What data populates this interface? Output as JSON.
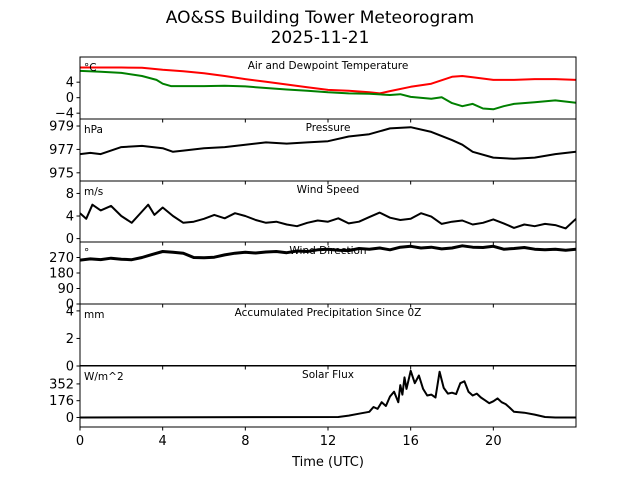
{
  "title_line1": "AO&SS Building Tower Meteorogram",
  "title_line2": "2025-11-21",
  "chart_data": [
    {
      "type": "line",
      "title": "Air and Dewpoint Temperature",
      "unit": "°C",
      "yticks": [
        4,
        0,
        -4
      ],
      "ylim": [
        -5.5,
        10.5
      ],
      "series": [
        {
          "name": "Air Temperature",
          "color": "#ff0000",
          "x": [
            0,
            1,
            2,
            3,
            4,
            5,
            6,
            7,
            8,
            9,
            10,
            11,
            12,
            13,
            14,
            14.5,
            15,
            16,
            17,
            18,
            18.5,
            19,
            20,
            21,
            22,
            23,
            24
          ],
          "y": [
            7.8,
            7.8,
            7.8,
            7.7,
            7.2,
            6.8,
            6.3,
            5.6,
            4.8,
            4.1,
            3.4,
            2.7,
            2.0,
            1.8,
            1.4,
            1.1,
            1.7,
            2.8,
            3.6,
            5.4,
            5.6,
            5.3,
            4.6,
            4.6,
            4.8,
            4.8,
            4.6
          ]
        },
        {
          "name": "Dewpoint",
          "color": "#008000",
          "x": [
            0,
            1,
            2,
            3,
            3.7,
            4,
            4.4,
            5,
            6,
            7,
            8,
            9,
            10,
            11,
            12,
            13,
            14,
            15,
            15.5,
            16,
            17,
            17.5,
            18,
            18.5,
            19,
            19.5,
            20,
            20.5,
            21,
            22,
            23,
            24
          ],
          "y": [
            6.9,
            6.7,
            6.4,
            5.6,
            4.6,
            3.6,
            3.0,
            3.0,
            3.0,
            3.1,
            2.9,
            2.5,
            2.1,
            1.8,
            1.4,
            1.1,
            1.0,
            0.7,
            0.9,
            0.2,
            -0.3,
            0.1,
            -1.4,
            -2.2,
            -1.6,
            -2.8,
            -3.0,
            -2.2,
            -1.6,
            -1.2,
            -0.7,
            -1.3
          ]
        }
      ]
    },
    {
      "type": "line",
      "title": "Pressure",
      "unit": "hPa",
      "yticks": [
        979,
        977,
        975
      ],
      "ylim": [
        974.3,
        979.6
      ],
      "series": [
        {
          "name": "Pressure",
          "color": "#000000",
          "x": [
            0,
            0.5,
            1,
            1.5,
            2,
            3,
            4,
            4.5,
            5,
            6,
            7,
            8,
            9,
            10,
            11,
            12,
            13,
            13.5,
            14,
            15,
            16,
            17,
            18,
            18.5,
            19,
            20,
            21,
            22,
            23,
            24
          ],
          "y": [
            976.6,
            976.7,
            976.6,
            976.9,
            977.2,
            977.3,
            977.1,
            976.8,
            976.9,
            977.1,
            977.2,
            977.4,
            977.6,
            977.5,
            977.6,
            977.7,
            978.1,
            978.2,
            978.3,
            978.8,
            978.9,
            978.5,
            977.8,
            977.4,
            976.8,
            976.3,
            976.2,
            976.3,
            976.6,
            976.8
          ]
        }
      ]
    },
    {
      "type": "line",
      "title": "Wind Speed",
      "unit": "m/s",
      "yticks": [
        8,
        4,
        0
      ],
      "ylim": [
        -0.6,
        10.2
      ],
      "series": [
        {
          "name": "Wind Speed",
          "color": "#000000",
          "x": [
            0,
            0.3,
            0.6,
            1,
            1.5,
            2,
            2.5,
            3,
            3.3,
            3.6,
            4,
            4.5,
            5,
            5.5,
            6,
            6.5,
            7,
            7.5,
            8,
            8.5,
            9,
            9.5,
            10,
            10.5,
            11,
            11.5,
            12,
            12.5,
            13,
            13.5,
            14,
            14.5,
            15,
            15.5,
            16,
            16.5,
            17,
            17.5,
            18,
            18.5,
            19,
            19.5,
            20,
            20.5,
            21,
            21.5,
            22,
            22.5,
            23,
            23.5,
            24
          ],
          "y": [
            4.5,
            3.5,
            6.0,
            5.0,
            5.8,
            4.0,
            2.8,
            4.8,
            6.0,
            4.2,
            5.5,
            4.0,
            2.8,
            3.0,
            3.5,
            4.2,
            3.6,
            4.5,
            4.0,
            3.3,
            2.8,
            3.0,
            2.5,
            2.2,
            2.8,
            3.2,
            3.0,
            3.6,
            2.7,
            3.0,
            3.8,
            4.6,
            3.7,
            3.3,
            3.5,
            4.5,
            3.9,
            2.6,
            3.0,
            3.2,
            2.5,
            2.8,
            3.4,
            2.7,
            1.9,
            2.5,
            2.2,
            2.6,
            2.4,
            1.8,
            3.5
          ]
        }
      ]
    },
    {
      "type": "line",
      "title": "Wind Direction",
      "unit": "°",
      "yticks": [
        270,
        180,
        90,
        0
      ],
      "ylim": [
        0,
        360
      ],
      "series": [
        {
          "name": "Wind Direction",
          "color": "#000000",
          "x": [
            0,
            0.5,
            1,
            1.5,
            2,
            2.5,
            3,
            3.5,
            4,
            4.5,
            5,
            5.5,
            6,
            6.5,
            7,
            7.5,
            8,
            8.5,
            9,
            9.5,
            10,
            10.5,
            11,
            11.5,
            12,
            12.5,
            13,
            13.5,
            14,
            14.5,
            15,
            15.5,
            16,
            16.5,
            17,
            17.5,
            18,
            18.5,
            19,
            19.5,
            20,
            20.5,
            21,
            21.5,
            22,
            22.5,
            23,
            23.5,
            24
          ],
          "y": [
            255,
            262,
            258,
            266,
            260,
            257,
            270,
            288,
            305,
            300,
            295,
            270,
            268,
            272,
            285,
            295,
            300,
            296,
            302,
            305,
            298,
            308,
            305,
            315,
            318,
            312,
            310,
            322,
            318,
            325,
            315,
            330,
            335,
            325,
            330,
            320,
            325,
            338,
            330,
            328,
            335,
            318,
            322,
            328,
            318,
            315,
            318,
            312,
            318
          ]
        }
      ]
    },
    {
      "type": "line",
      "title": "Accumulated Precipitation Since 0Z",
      "unit": "mm",
      "yticks": [
        4,
        2,
        0
      ],
      "ylim": [
        0,
        4.5
      ],
      "series": [
        {
          "name": "Precipitation",
          "color": "#000000",
          "x": [
            0,
            24
          ],
          "y": [
            0,
            0
          ]
        }
      ]
    },
    {
      "type": "line",
      "title": "Solar Flux",
      "unit": "W/m^2",
      "yticks": [
        352,
        176,
        0
      ],
      "ylim": [
        -100,
        540
      ],
      "series": [
        {
          "name": "Solar Flux",
          "color": "#000000",
          "x": [
            0,
            12.5,
            13,
            13.5,
            14,
            14.2,
            14.4,
            14.6,
            14.8,
            15.0,
            15.2,
            15.4,
            15.5,
            15.6,
            15.7,
            15.8,
            16.0,
            16.2,
            16.4,
            16.6,
            16.8,
            17.0,
            17.2,
            17.4,
            17.6,
            17.8,
            18.0,
            18.2,
            18.4,
            18.6,
            18.8,
            19.0,
            19.2,
            19.4,
            19.6,
            19.8,
            20.0,
            20.2,
            20.4,
            20.6,
            20.8,
            21.0,
            21.5,
            22.0,
            22.5,
            23.0,
            24
          ],
          "y": [
            0,
            5,
            20,
            40,
            60,
            110,
            90,
            160,
            120,
            220,
            270,
            160,
            340,
            240,
            420,
            300,
            490,
            360,
            440,
            300,
            230,
            240,
            210,
            480,
            310,
            250,
            260,
            245,
            360,
            380,
            270,
            230,
            250,
            210,
            180,
            150,
            170,
            200,
            160,
            140,
            100,
            60,
            50,
            30,
            5,
            0,
            0
          ]
        }
      ]
    }
  ],
  "x_axis": {
    "label": "Time (UTC)",
    "ticks": [
      0,
      4,
      8,
      12,
      16,
      20
    ],
    "xlim": [
      0,
      24
    ]
  }
}
